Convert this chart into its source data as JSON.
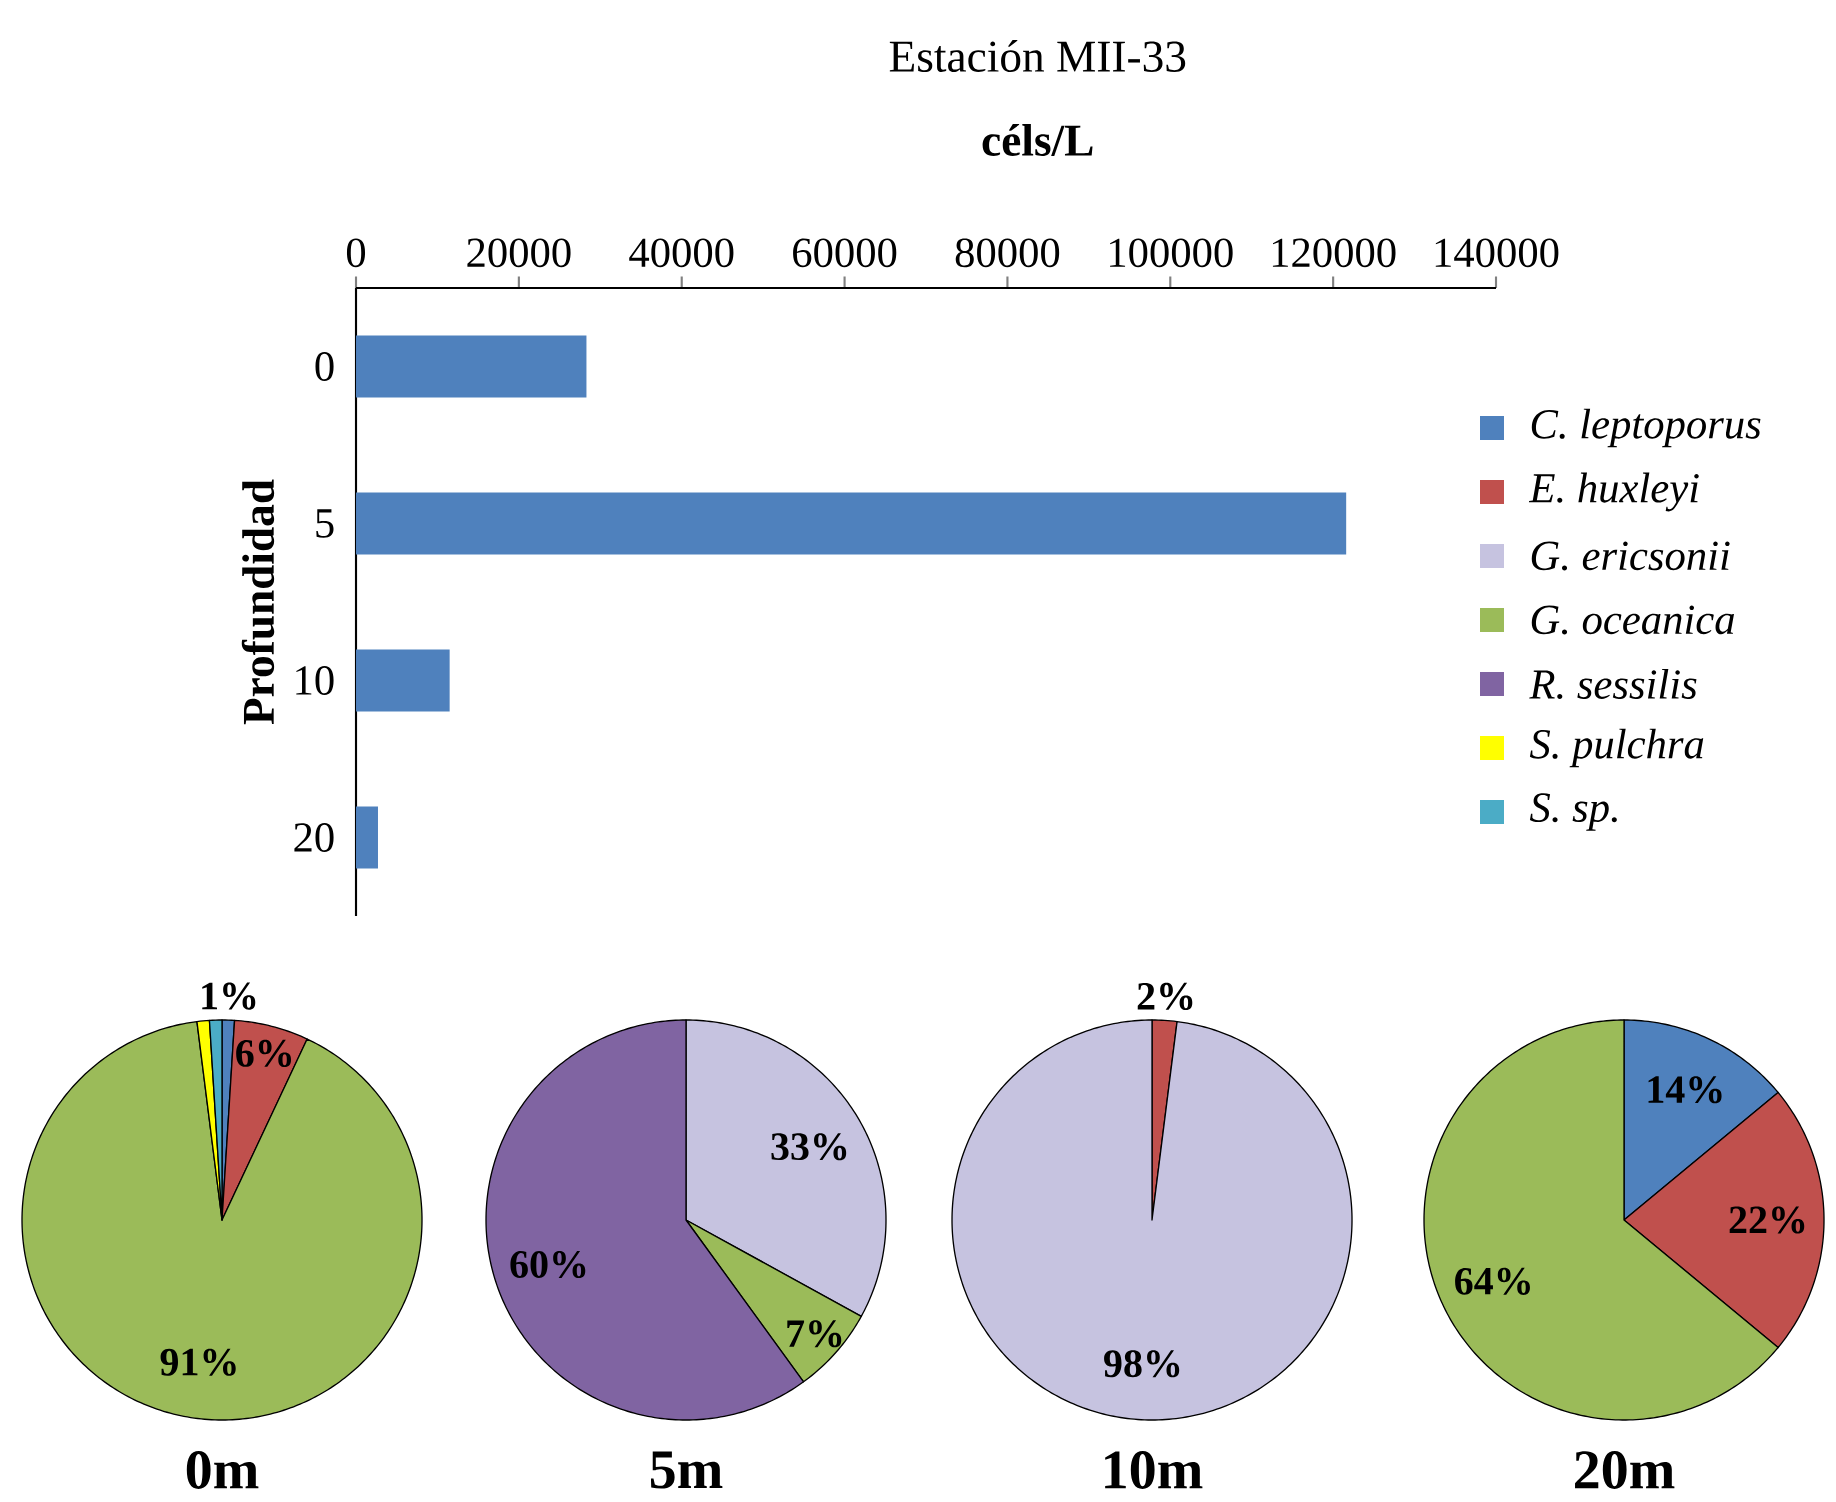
{
  "chart_data": [
    {
      "type": "bar",
      "orientation": "horizontal",
      "title": "Estación MII-33",
      "xlabel": "céls/L",
      "ylabel": "Profundidad",
      "categories": [
        "0",
        "5",
        "10",
        "20"
      ],
      "series": [
        {
          "color": "#4f81bd",
          "values": [
            28300,
            121600,
            11500,
            2700
          ]
        }
      ],
      "xlim": [
        0,
        140000
      ],
      "xticks": [
        0,
        20000,
        40000,
        60000,
        80000,
        100000,
        120000,
        140000
      ],
      "legend": false
    },
    {
      "type": "pie",
      "title": "0m",
      "legend": "top right",
      "categories": [
        "C. leptoporus",
        "E. huxleyi",
        "G. ericsonii",
        "G. oceanica",
        "R. sessilis",
        "S. pulchra",
        "S. sp."
      ],
      "values": [
        1,
        6,
        0,
        91,
        0,
        1,
        1
      ],
      "value_labels": [
        "1%",
        "6%",
        null,
        "91%",
        null,
        null,
        null
      ],
      "colors": [
        "#4f81bd",
        "#c0504d",
        "#c6c3e0",
        "#9bbb59",
        "#8064a2",
        "#ffff00",
        "#4bacc6"
      ]
    },
    {
      "type": "pie",
      "title": "5m",
      "categories": [
        null,
        null,
        null,
        null,
        null,
        null,
        null
      ],
      "values": [
        0,
        0,
        33,
        7,
        60,
        0,
        0
      ],
      "value_labels": [
        null,
        null,
        "33%",
        "7%",
        "60%",
        null,
        null
      ],
      "colors": [
        "#4f81bd",
        "#c0504d",
        "#c6c3e0",
        "#9bbb59",
        "#8064a2",
        "#ffff00",
        "#4bacc6"
      ]
    },
    {
      "type": "pie",
      "title": "10m",
      "categories": [
        null,
        null,
        null,
        null,
        null,
        null,
        null
      ],
      "values": [
        0,
        2,
        98,
        0,
        0,
        0,
        0
      ],
      "value_labels": [
        null,
        "2%",
        "98%",
        null,
        null,
        null,
        null
      ],
      "colors": [
        "#4f81bd",
        "#c0504d",
        "#c6c3e0",
        "#9bbb59",
        "#8064a2",
        "#ffff00",
        "#4bacc6"
      ]
    },
    {
      "type": "pie",
      "title": "20m",
      "categories": [
        null,
        null,
        null,
        null,
        null,
        null,
        null
      ],
      "values": [
        14,
        22,
        0,
        64,
        0,
        0,
        0
      ],
      "value_labels": [
        "14%",
        "22%",
        null,
        "64%",
        null,
        null,
        null
      ],
      "colors": [
        "#4f81bd",
        "#c0504d",
        "#c6c3e0",
        "#9bbb59",
        "#8064a2",
        "#ffff00",
        "#4bacc6"
      ]
    }
  ]
}
